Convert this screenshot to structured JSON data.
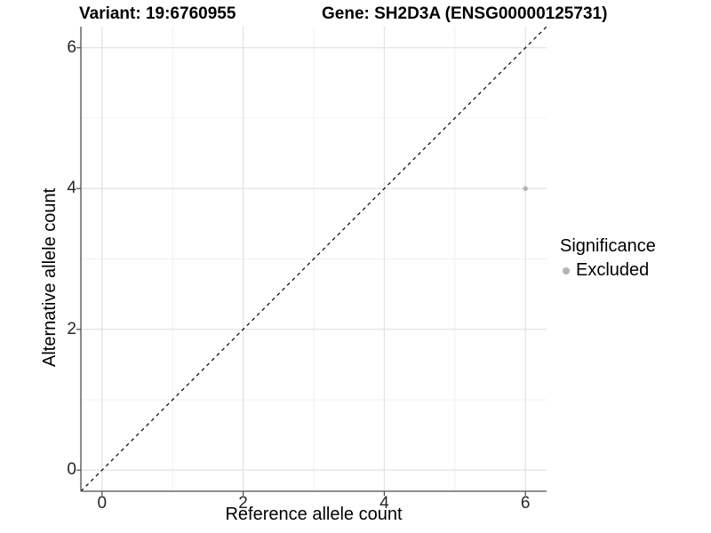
{
  "header": {
    "title_left": "Variant: 19:6760955",
    "title_right": "Gene: SH2D3A (ENSG00000125731)"
  },
  "chart_data": {
    "type": "scatter",
    "title": "Variant: 19:6760955  /  Gene: SH2D3A (ENSG00000125731)",
    "xlabel": "Reference allele count",
    "ylabel": "Alternative allele count",
    "xlim": [
      -0.3,
      6.3
    ],
    "ylim": [
      -0.3,
      6.3
    ],
    "xticks": [
      0,
      2,
      4,
      6
    ],
    "yticks": [
      0,
      2,
      4,
      6
    ],
    "minor_xticks": [
      1,
      3,
      5
    ],
    "minor_yticks": [
      1,
      3,
      5
    ],
    "grid": true,
    "points": [
      {
        "x": 6,
        "y": 4,
        "series": "Excluded"
      }
    ],
    "reference_line": {
      "slope": 1,
      "intercept": 0,
      "style": "dashed",
      "color": "#000000"
    },
    "legend": {
      "position": "right",
      "title": "Significance",
      "entries": [
        {
          "label": "Excluded",
          "color": "#b4b4b4"
        }
      ]
    },
    "colors": {
      "point": "#b4b4b4",
      "grid_major": "#e2e2e2",
      "grid_minor": "#f0f0f0",
      "axis_line": "#4d4d4d",
      "tick_mark": "#4d4d4d",
      "tick_text": "#262626"
    }
  }
}
